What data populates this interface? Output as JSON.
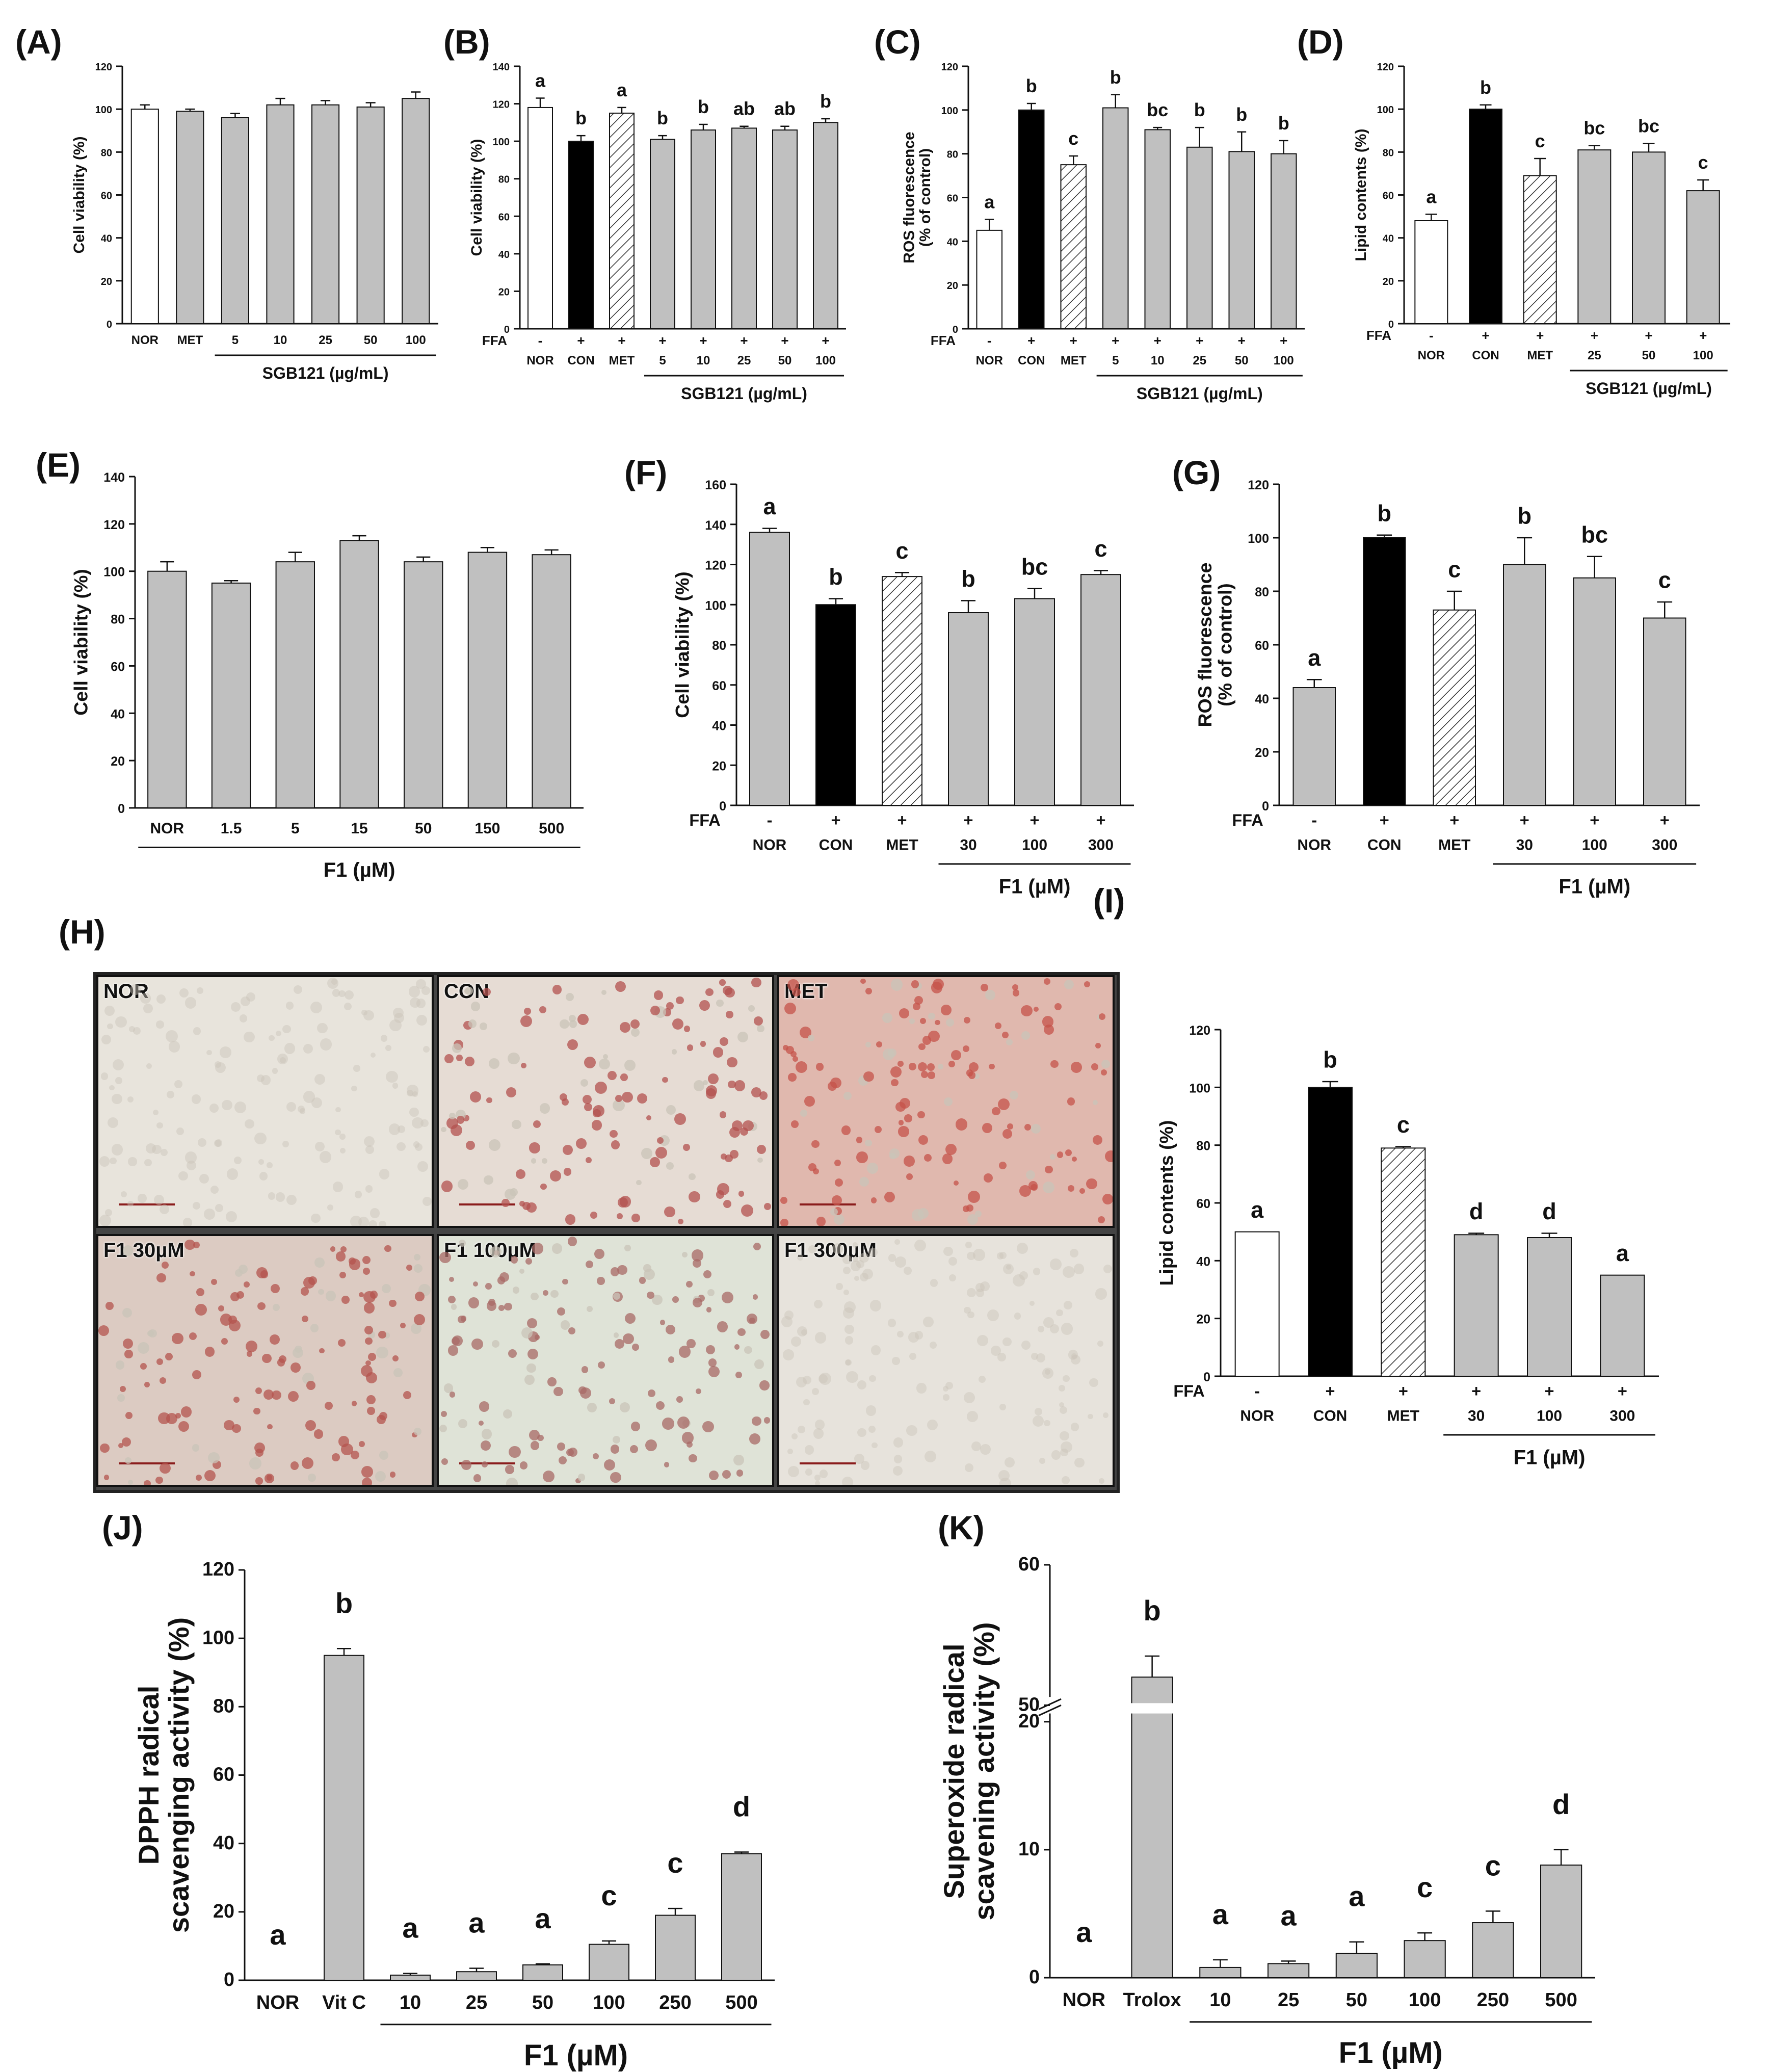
{
  "chart_data": [
    {
      "id": "A",
      "type": "bar",
      "panel_label": "(A)",
      "ylabel": "Cell viability (%)",
      "ylim": [
        0,
        120
      ],
      "yticks": [
        0,
        20,
        40,
        60,
        80,
        100,
        120
      ],
      "categories": [
        "NOR",
        "MET",
        "5",
        "10",
        "25",
        "50",
        "100"
      ],
      "values": [
        100,
        99,
        96,
        102,
        102,
        101,
        105
      ],
      "errors": [
        2,
        1,
        2,
        3,
        2,
        2,
        3
      ],
      "fills": [
        "white",
        "gray",
        "gray",
        "gray",
        "gray",
        "gray",
        "gray"
      ],
      "letters": [
        "",
        "",
        "",
        "",
        "",
        "",
        ""
      ],
      "ffa": [],
      "group_label": "SGB121 (µg/mL)",
      "group_range": [
        2,
        6
      ]
    },
    {
      "id": "B",
      "type": "bar",
      "panel_label": "(B)",
      "ylabel": "Cell viability (%)",
      "ylim": [
        0,
        140
      ],
      "yticks": [
        0,
        20,
        40,
        60,
        80,
        100,
        120,
        140
      ],
      "categories": [
        "NOR",
        "CON",
        "MET",
        "5",
        "10",
        "25",
        "50",
        "100"
      ],
      "values": [
        118,
        100,
        115,
        101,
        106,
        107,
        106,
        110
      ],
      "errors": [
        5,
        3,
        3,
        2,
        3,
        1,
        2,
        2
      ],
      "fills": [
        "white",
        "black",
        "hatch",
        "gray",
        "gray",
        "gray",
        "gray",
        "gray"
      ],
      "letters": [
        "a",
        "b",
        "a",
        "b",
        "b",
        "ab",
        "ab",
        "b"
      ],
      "ffa_label": "FFA",
      "ffa": [
        "-",
        "+",
        "+",
        "+",
        "+",
        "+",
        "+",
        "+"
      ],
      "group_label": "SGB121 (µg/mL)",
      "group_range": [
        3,
        7
      ]
    },
    {
      "id": "C",
      "type": "bar",
      "panel_label": "(C)",
      "ylabel": "ROS fluorescence (% of control)",
      "ylim": [
        0,
        120
      ],
      "yticks": [
        0,
        20,
        40,
        60,
        80,
        100,
        120
      ],
      "categories": [
        "NOR",
        "CON",
        "MET",
        "5",
        "10",
        "25",
        "50",
        "100"
      ],
      "values": [
        45,
        100,
        75,
        101,
        91,
        83,
        81,
        80
      ],
      "errors": [
        5,
        3,
        4,
        6,
        1,
        9,
        9,
        6
      ],
      "fills": [
        "white",
        "black",
        "hatch",
        "gray",
        "gray",
        "gray",
        "gray",
        "gray"
      ],
      "letters": [
        "a",
        "b",
        "c",
        "b",
        "bc",
        "b",
        "b",
        "b"
      ],
      "ffa_label": "FFA",
      "ffa": [
        "-",
        "+",
        "+",
        "+",
        "+",
        "+",
        "+",
        "+"
      ],
      "group_label": "SGB121 (µg/mL)",
      "group_range": [
        3,
        7
      ]
    },
    {
      "id": "D",
      "type": "bar",
      "panel_label": "(D)",
      "ylabel": "Lipid contents (%)",
      "ylim": [
        0,
        120
      ],
      "yticks": [
        0,
        20,
        40,
        60,
        80,
        100,
        120
      ],
      "categories": [
        "NOR",
        "CON",
        "MET",
        "25",
        "50",
        "100"
      ],
      "values": [
        48,
        100,
        69,
        81,
        80,
        62
      ],
      "errors": [
        3,
        2,
        8,
        2,
        4,
        5
      ],
      "fills": [
        "white",
        "black",
        "hatch",
        "gray",
        "gray",
        "gray"
      ],
      "letters": [
        "a",
        "b",
        "c",
        "bc",
        "bc",
        "c"
      ],
      "ffa_label": "FFA",
      "ffa": [
        "-",
        "+",
        "+",
        "+",
        "+",
        "+"
      ],
      "group_label": "SGB121 (µg/mL)",
      "group_range": [
        3,
        5
      ]
    },
    {
      "id": "E",
      "type": "bar",
      "panel_label": "(E)",
      "ylabel": "Cell viability (%)",
      "ylim": [
        0,
        140
      ],
      "yticks": [
        0,
        20,
        40,
        60,
        80,
        100,
        120,
        140
      ],
      "categories": [
        "NOR",
        "1.5",
        "5",
        "15",
        "50",
        "150",
        "500"
      ],
      "values": [
        100,
        95,
        104,
        113,
        104,
        108,
        107
      ],
      "errors": [
        4,
        1,
        4,
        2,
        2,
        2,
        2
      ],
      "fills": [
        "gray",
        "gray",
        "gray",
        "gray",
        "gray",
        "gray",
        "gray"
      ],
      "letters": [
        "",
        "",
        "",
        "",
        "",
        "",
        ""
      ],
      "ffa": [],
      "group_label": "F1 (µM)",
      "group_range": [
        0,
        6
      ]
    },
    {
      "id": "F",
      "type": "bar",
      "panel_label": "(F)",
      "ylabel": "Cell viability (%)",
      "ylim": [
        0,
        160
      ],
      "yticks": [
        0,
        20,
        40,
        60,
        80,
        100,
        120,
        140,
        160
      ],
      "categories": [
        "NOR",
        "CON",
        "MET",
        "30",
        "100",
        "300"
      ],
      "values": [
        136,
        100,
        114,
        96,
        103,
        115
      ],
      "errors": [
        2,
        3,
        2,
        6,
        5,
        2
      ],
      "fills": [
        "gray",
        "black",
        "hatch",
        "gray",
        "gray",
        "gray"
      ],
      "letters": [
        "a",
        "b",
        "c",
        "b",
        "bc",
        "c"
      ],
      "ffa_label": "FFA",
      "ffa": [
        "-",
        "+",
        "+",
        "+",
        "+",
        "+"
      ],
      "group_label": "F1 (µM)",
      "group_range": [
        3,
        5
      ]
    },
    {
      "id": "G",
      "type": "bar",
      "panel_label": "(G)",
      "ylabel": "ROS fluorescence (% of control)",
      "ylim": [
        0,
        120
      ],
      "yticks": [
        0,
        20,
        40,
        60,
        80,
        100,
        120
      ],
      "categories": [
        "NOR",
        "CON",
        "MET",
        "30",
        "100",
        "300"
      ],
      "values": [
        44,
        100,
        73,
        90,
        85,
        70
      ],
      "errors": [
        3,
        1,
        7,
        10,
        8,
        6
      ],
      "fills": [
        "gray",
        "black",
        "hatch",
        "gray",
        "gray",
        "gray"
      ],
      "letters": [
        "a",
        "b",
        "c",
        "b",
        "bc",
        "c"
      ],
      "ffa_label": "FFA",
      "ffa": [
        "-",
        "+",
        "+",
        "+",
        "+",
        "+"
      ],
      "group_label": "F1 (µM)",
      "group_range": [
        3,
        5
      ]
    },
    {
      "id": "I",
      "type": "bar",
      "panel_label": "(I)",
      "ylabel": "Lipid contents (%)",
      "ylim": [
        0,
        120
      ],
      "yticks": [
        0,
        20,
        40,
        60,
        80,
        100,
        120
      ],
      "categories": [
        "NOR",
        "CON",
        "MET",
        "30",
        "100",
        "300"
      ],
      "values": [
        50,
        100,
        79,
        49,
        48,
        35
      ],
      "errors": [
        0,
        2,
        0.5,
        0.5,
        1.5,
        0
      ],
      "fills": [
        "white",
        "black",
        "hatch",
        "gray",
        "gray",
        "gray"
      ],
      "letters": [
        "a",
        "b",
        "c",
        "d",
        "d",
        "a"
      ],
      "ffa_label": "FFA",
      "ffa": [
        "-",
        "+",
        "+",
        "+",
        "+",
        "+"
      ],
      "group_label": "F1 (µM)",
      "group_range": [
        3,
        5
      ]
    },
    {
      "id": "J",
      "type": "bar",
      "panel_label": "(J)",
      "ylabel": "DPPH radical scavenging activity  (%)",
      "ylim": [
        0,
        120
      ],
      "yticks": [
        0,
        20,
        40,
        60,
        80,
        100,
        120
      ],
      "categories": [
        "NOR",
        "Vit C",
        "10",
        "25",
        "50",
        "100",
        "250",
        "500"
      ],
      "values": [
        0,
        95,
        1.5,
        2.5,
        4.5,
        10.5,
        19,
        37
      ],
      "errors": [
        0,
        2,
        0.5,
        1,
        0.3,
        1,
        2,
        0.5
      ],
      "fills": [
        "gray",
        "gray",
        "gray",
        "gray",
        "gray",
        "gray",
        "gray",
        "gray"
      ],
      "letters": [
        "a",
        "b",
        "a",
        "a",
        "a",
        "c",
        "c",
        "d"
      ],
      "ffa": [],
      "group_label": "F1 (µM)",
      "group_range": [
        2,
        7
      ]
    },
    {
      "id": "K",
      "type": "bar",
      "panel_label": "(K)",
      "ylabel": "Superoxide radical scavening activity (%)",
      "ylim": [
        0,
        60
      ],
      "yticks": [
        0,
        10,
        20,
        50,
        60
      ],
      "axis_break": [
        20,
        50
      ],
      "categories": [
        "NOR",
        "Trolox",
        "10",
        "25",
        "50",
        "100",
        "250",
        "500"
      ],
      "values": [
        0,
        52,
        0.8,
        1.1,
        1.9,
        2.9,
        4.3,
        8.8
      ],
      "errors": [
        0,
        1.5,
        0.6,
        0.2,
        0.9,
        0.6,
        0.9,
        1.2
      ],
      "fills": [
        "gray",
        "gray",
        "gray",
        "gray",
        "gray",
        "gray",
        "gray",
        "gray"
      ],
      "letters": [
        "a",
        "b",
        "a",
        "a",
        "a",
        "c",
        "c",
        "d"
      ],
      "ffa": [],
      "group_label": "F1 (µM)",
      "group_range": [
        2,
        7
      ]
    }
  ],
  "photos": {
    "panel_label": "(H)",
    "labels": [
      "NOR",
      "CON",
      "MET",
      "F1 30µM",
      "F1 100µM",
      "F1 300µM"
    ]
  }
}
